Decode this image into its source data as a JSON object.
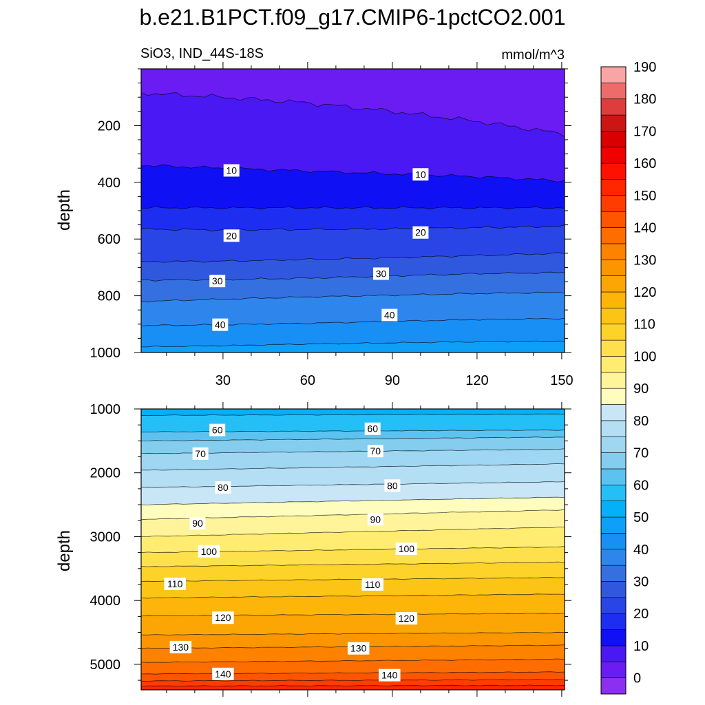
{
  "figure": {
    "title": "b.e21.B1PCT.f09_g17.CMIP6-1pctCO2.001",
    "left_subtitle": "SiO3, IND_44S-18S",
    "right_subtitle": "mmol/m^3"
  },
  "chart_data": [
    {
      "type": "heatmap",
      "variant": "filled-contour",
      "panel": "upper",
      "x_range": [
        1,
        151
      ],
      "x_ticks": [
        30,
        60,
        90,
        120,
        150
      ],
      "x_tick_labels": [
        "30",
        "60",
        "90",
        "120",
        "150"
      ],
      "ylabel": "depth",
      "y_range": [
        0,
        1000
      ],
      "y_reversed": true,
      "y_ticks": [
        200,
        400,
        600,
        800,
        1000
      ],
      "y_tick_labels": [
        "200",
        "400",
        "600",
        "800",
        "1000"
      ],
      "contour_levels": [
        5,
        10,
        15,
        20,
        25,
        30,
        35,
        40,
        45
      ],
      "contour_depths_at_x": {
        "x": [
          1,
          30,
          60,
          90,
          120,
          151
        ],
        "level_5": [
          85,
          100,
          120,
          150,
          185,
          230
        ],
        "level_10": [
          340,
          350,
          360,
          370,
          380,
          395
        ],
        "level_15": [
          490,
          490,
          490,
          490,
          490,
          490
        ],
        "level_20": [
          565,
          568,
          566,
          564,
          560,
          555
        ],
        "level_25": [
          680,
          678,
          672,
          666,
          658,
          650
        ],
        "level_30": [
          745,
          743,
          738,
          730,
          722,
          718
        ],
        "level_35": [
          820,
          812,
          804,
          798,
          792,
          788
        ],
        "level_40": [
          905,
          902,
          897,
          890,
          884,
          880
        ],
        "level_45": [
          980,
          976,
          970,
          966,
          962,
          960
        ]
      },
      "contour_labels": [
        {
          "value": "10",
          "x": 33,
          "y": 358
        },
        {
          "value": "10",
          "x": 100,
          "y": 372
        },
        {
          "value": "20",
          "x": 33,
          "y": 588
        },
        {
          "value": "20",
          "x": 100,
          "y": 577
        },
        {
          "value": "30",
          "x": 28,
          "y": 748
        },
        {
          "value": "30",
          "x": 86,
          "y": 722
        },
        {
          "value": "40",
          "x": 29,
          "y": 902
        },
        {
          "value": "40",
          "x": 89,
          "y": 868
        }
      ]
    },
    {
      "type": "heatmap",
      "variant": "filled-contour",
      "panel": "lower",
      "x_range": [
        1,
        151
      ],
      "ylabel": "depth",
      "y_range": [
        1000,
        5400
      ],
      "y_reversed": true,
      "y_ticks": [
        1000,
        2000,
        3000,
        4000,
        5000
      ],
      "y_tick_labels": [
        "1000",
        "2000",
        "3000",
        "4000",
        "5000"
      ],
      "contour_levels": [
        55,
        60,
        65,
        70,
        75,
        80,
        85,
        90,
        95,
        100,
        105,
        110,
        115,
        120,
        125,
        130,
        135,
        140,
        145,
        150
      ],
      "contour_depths_at_x": {
        "x": [
          1,
          151
        ],
        "level_55": [
          1100,
          1080
        ],
        "level_60": [
          1360,
          1330
        ],
        "level_65": [
          1500,
          1440
        ],
        "level_70": [
          1700,
          1630
        ],
        "level_75": [
          1960,
          1860
        ],
        "level_80": [
          2230,
          2140
        ],
        "level_85": [
          2500,
          2380
        ],
        "level_90": [
          2730,
          2580
        ],
        "level_95": [
          3000,
          2850
        ],
        "level_100": [
          3250,
          3160
        ],
        "level_105": [
          3470,
          3400
        ],
        "level_110": [
          3700,
          3640
        ],
        "level_115": [
          3960,
          3900
        ],
        "level_120": [
          4240,
          4200
        ],
        "level_125": [
          4540,
          4500
        ],
        "level_130": [
          4750,
          4700
        ],
        "level_135": [
          4970,
          4920
        ],
        "level_140": [
          5150,
          5120
        ],
        "level_145": [
          5260,
          5240
        ],
        "level_150": [
          5340,
          5330
        ]
      },
      "contour_labels": [
        {
          "value": "60",
          "x": 28,
          "y": 1330
        },
        {
          "value": "60",
          "x": 83,
          "y": 1310
        },
        {
          "value": "70",
          "x": 22,
          "y": 1700
        },
        {
          "value": "70",
          "x": 84,
          "y": 1660
        },
        {
          "value": "80",
          "x": 30,
          "y": 2230
        },
        {
          "value": "80",
          "x": 90,
          "y": 2200
        },
        {
          "value": "90",
          "x": 21,
          "y": 2790
        },
        {
          "value": "90",
          "x": 84,
          "y": 2730
        },
        {
          "value": "100",
          "x": 25,
          "y": 3230
        },
        {
          "value": "100",
          "x": 95,
          "y": 3190
        },
        {
          "value": "110",
          "x": 13,
          "y": 3740
        },
        {
          "value": "110",
          "x": 83,
          "y": 3750
        },
        {
          "value": "120",
          "x": 30,
          "y": 4270
        },
        {
          "value": "120",
          "x": 95,
          "y": 4280
        },
        {
          "value": "130",
          "x": 15,
          "y": 4730
        },
        {
          "value": "130",
          "x": 78,
          "y": 4750
        },
        {
          "value": "140",
          "x": 30,
          "y": 5150
        },
        {
          "value": "140",
          "x": 89,
          "y": 5170
        }
      ]
    }
  ],
  "colorbar": {
    "labels": [
      "0",
      "10",
      "20",
      "30",
      "40",
      "50",
      "60",
      "70",
      "80",
      "90",
      "100",
      "110",
      "120",
      "130",
      "140",
      "150",
      "160",
      "170",
      "180",
      "190"
    ],
    "colors": [
      "#8b2ff1",
      "#6a1cf2",
      "#4a18f3",
      "#1010f5",
      "#1e2ef0",
      "#2a45e5",
      "#3058df",
      "#3470e0",
      "#2e86ec",
      "#188ff5",
      "#0ea0f8",
      "#05b0f8",
      "#25bff7",
      "#5cc3f0",
      "#84cdef",
      "#9fd6f2",
      "#b4def3",
      "#c8e6f5",
      "#fffdbd",
      "#fff49a",
      "#ffec70",
      "#fee04c",
      "#fdd229",
      "#fcc414",
      "#fdb50a",
      "#fca605",
      "#fb9601",
      "#fc8200",
      "#fe6d00",
      "#ff5500",
      "#ff3d00",
      "#ff2600",
      "#ff1100",
      "#f00000",
      "#d80000",
      "#cc1616",
      "#dd3d3d",
      "#ec6b6b",
      "#f9a5a5"
    ]
  }
}
